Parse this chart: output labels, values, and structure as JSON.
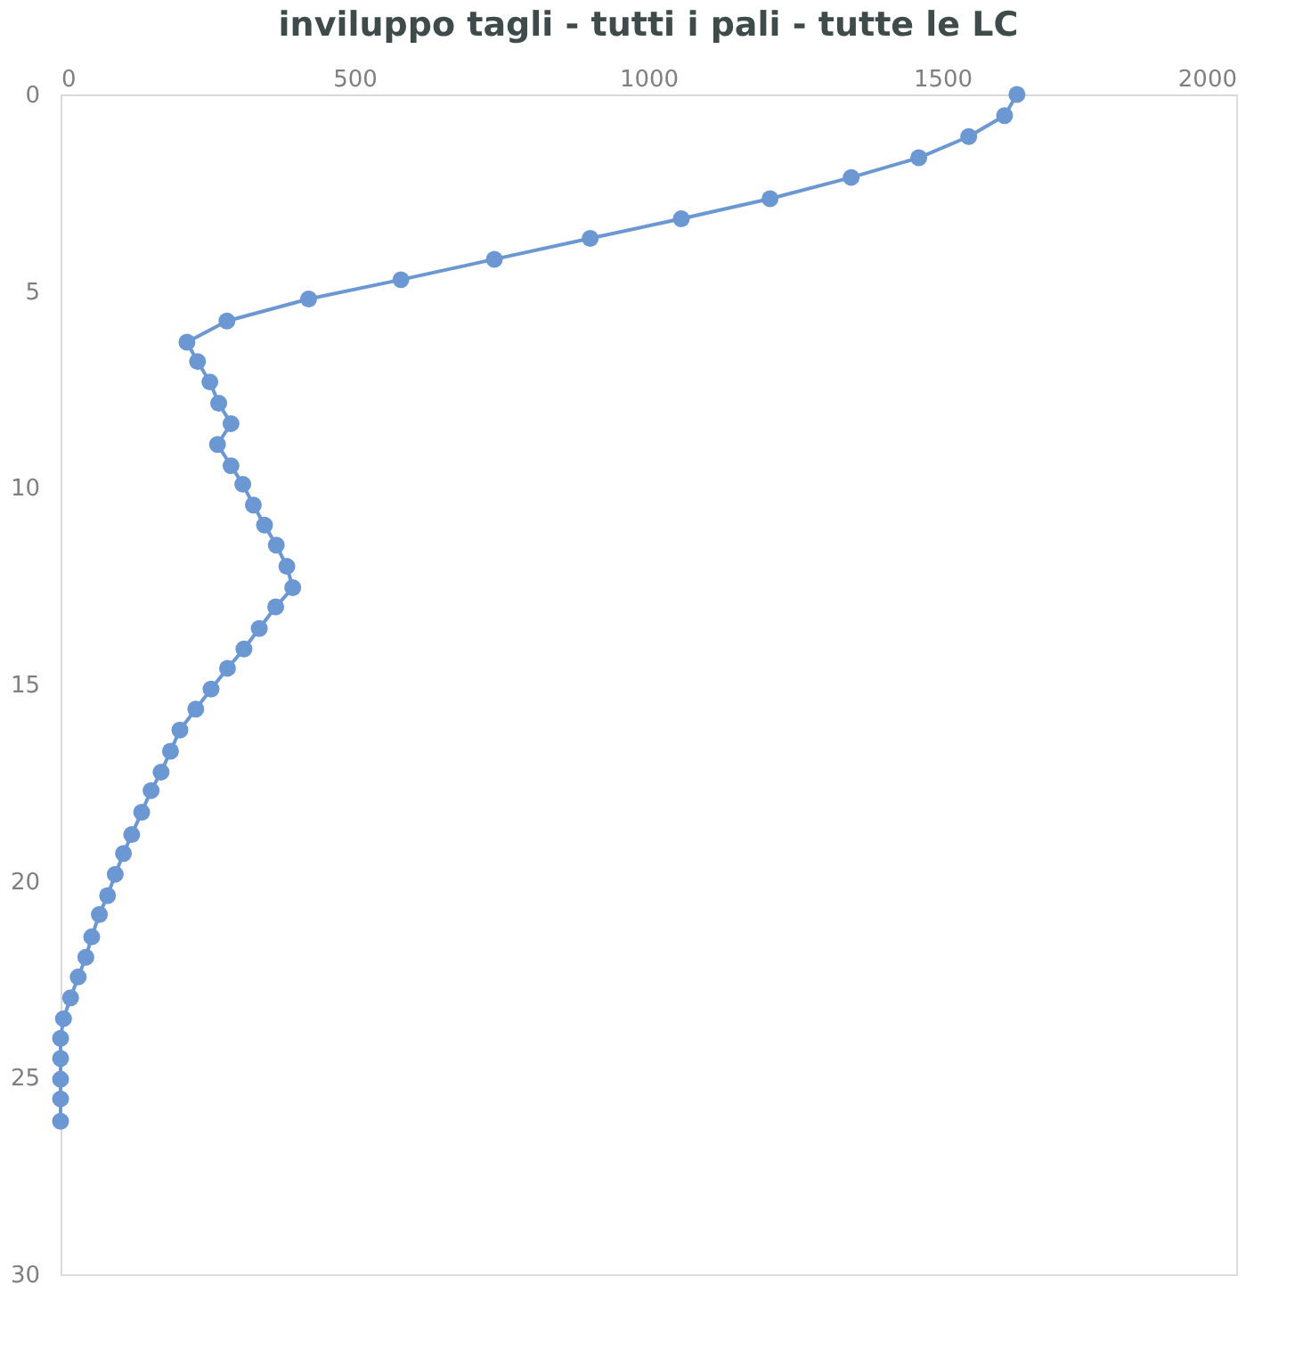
{
  "chart_data": {
    "type": "line",
    "title": "inviluppo tagli - tutti i pali - tutte le LC",
    "x": [
      1627,
      1606,
      1545,
      1460,
      1345,
      1207,
      1056,
      901,
      738,
      579,
      422,
      283,
      215,
      233,
      254,
      269,
      290,
      267,
      290,
      310,
      328,
      347,
      367,
      385,
      395,
      366,
      338,
      312,
      284,
      256,
      230,
      203,
      187,
      171,
      154,
      138,
      121,
      107,
      93,
      80,
      66,
      53,
      43,
      30,
      17,
      5,
      0,
      0,
      0,
      0,
      0
    ],
    "series": [
      {
        "color": "#6b97d3",
        "values": [
          0,
          0.54,
          1.07,
          1.61,
          2.11,
          2.65,
          3.16,
          3.66,
          4.19,
          4.71,
          5.2,
          5.76,
          6.3,
          6.79,
          7.31,
          7.85,
          8.37,
          8.9,
          9.44,
          9.91,
          10.44,
          10.95,
          11.46,
          12.0,
          12.54,
          13.03,
          13.58,
          14.1,
          14.59,
          15.12,
          15.63,
          16.16,
          16.7,
          17.23,
          17.7,
          18.25,
          18.82,
          19.3,
          19.83,
          20.37,
          20.85,
          21.42,
          21.94,
          22.44,
          22.97,
          23.5,
          24.0,
          24.51,
          25.04,
          25.54,
          26.11
        ]
      }
    ],
    "xlim": [
      0,
      2000
    ],
    "xticks": [
      0,
      500,
      1000,
      1500,
      2000
    ],
    "ylim": [
      30,
      0
    ],
    "yticks": [
      0,
      5,
      10,
      15,
      20,
      25,
      30
    ],
    "marker": "circle",
    "line_style": "solid",
    "grid": false
  }
}
